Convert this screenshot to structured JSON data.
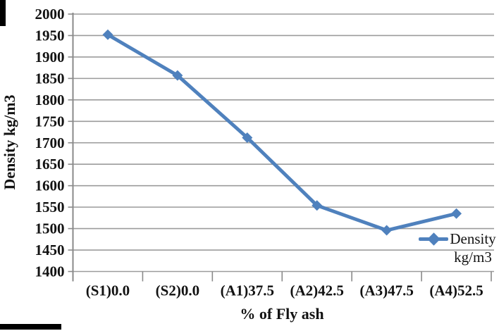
{
  "chart_data": {
    "type": "line",
    "title": "",
    "xlabel": "% of Fly ash",
    "ylabel": "Density kg/m3",
    "categories": [
      "(S1)0.0",
      "(S2)0.0",
      "(A1)37.5",
      "(A2)42.5",
      "(A3)47.5",
      "(A4)52.5"
    ],
    "series": [
      {
        "name": "Density kg/m3",
        "values": [
          1952,
          1857,
          1712,
          1554,
          1496,
          1535
        ]
      }
    ],
    "ylim": [
      1400,
      2000
    ],
    "y_ticks": [
      2000,
      1950,
      1900,
      1850,
      1800,
      1750,
      1700,
      1650,
      1600,
      1550,
      1500,
      1450,
      1400
    ],
    "grid": true,
    "marker": "diamond",
    "legend_position": "inside-bottom-right",
    "colors": {
      "series": "#4f81bd",
      "gridline": "#9b9b9b",
      "axis": "#8a8a8a",
      "text": "#121212"
    }
  }
}
